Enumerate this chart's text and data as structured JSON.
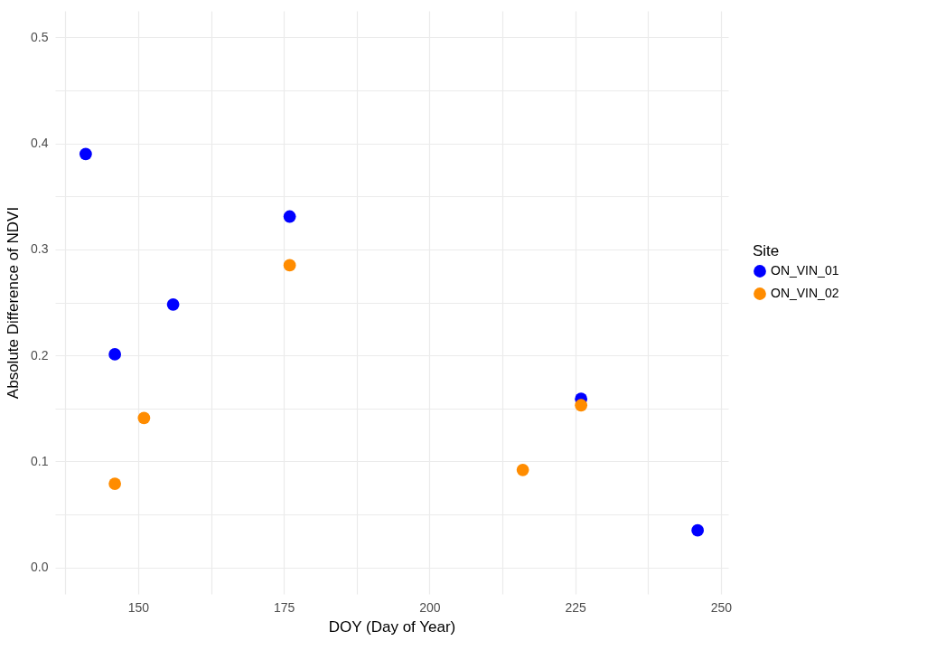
{
  "chart_data": {
    "type": "scatter",
    "xlabel": "DOY (Day of Year)",
    "ylabel": "Absolute Difference of NDVI",
    "legend_title": "Site",
    "series": [
      {
        "name": "ON_VIN_01",
        "color": "#0000ff",
        "x": [
          141,
          146,
          156,
          176,
          226,
          246
        ],
        "values": [
          0.39,
          0.201,
          0.248,
          0.331,
          0.159,
          0.035
        ]
      },
      {
        "name": "ON_VIN_02",
        "color": "#ff8c00",
        "x": [
          146,
          151,
          176,
          216,
          226
        ],
        "values": [
          0.079,
          0.141,
          0.285,
          0.092,
          0.153
        ]
      }
    ],
    "xlim": [
      135.75,
      251.25
    ],
    "ylim": [
      -0.025,
      0.525
    ],
    "xticks": [
      {
        "value": 137.5,
        "label": null
      },
      150,
      {
        "value": 162.5,
        "label": null
      },
      175,
      {
        "value": 187.5,
        "label": null
      },
      200,
      {
        "value": 212.5,
        "label": null
      },
      225,
      {
        "value": 237.5,
        "label": null
      },
      250
    ],
    "yticks": [
      {
        "value": 0,
        "label": "0.0"
      },
      {
        "value": 0.05,
        "label": null
      },
      0.1,
      {
        "value": 0.15,
        "label": null
      },
      0.2,
      {
        "value": 0.25,
        "label": null
      },
      0.3,
      {
        "value": 0.35,
        "label": null
      },
      0.4,
      {
        "value": 0.45,
        "label": null
      },
      0.5
    ],
    "grid": true,
    "legend": "right",
    "marker": "circle"
  }
}
